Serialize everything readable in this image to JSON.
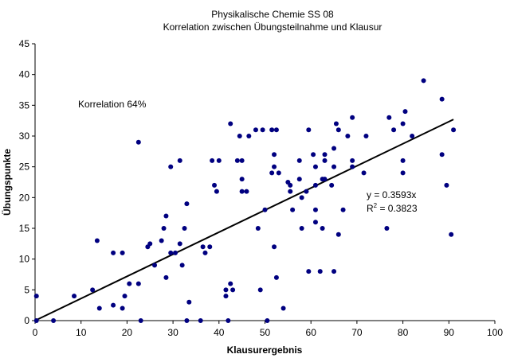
{
  "chart_data": {
    "type": "scatter",
    "title": "Physikalische Chemie SS 08",
    "subtitle": "Korrelation zwischen Übungsteilnahme und Klausur",
    "xlabel": "Klausurergebnis",
    "ylabel": "Übungspunkte",
    "xlim": [
      0,
      100
    ],
    "ylim": [
      0,
      45
    ],
    "xticks": [
      0,
      10,
      20,
      30,
      40,
      50,
      60,
      70,
      80,
      90,
      100
    ],
    "yticks": [
      0,
      5,
      10,
      15,
      20,
      25,
      30,
      35,
      40,
      45
    ],
    "grid": false,
    "legend": "none",
    "marker_color": "#000080",
    "line_color": "#000000",
    "annotations": {
      "correlation": "Korrelation 64%",
      "equation": "y = 0.3593x",
      "r2_prefix": "R",
      "r2_sup": "2",
      "r2_value": " = 0.3823"
    },
    "trendline": {
      "slope": 0.3593,
      "intercept": 0,
      "x_range": [
        0,
        91
      ]
    },
    "points": [
      [
        0.3,
        4
      ],
      [
        0.3,
        0
      ],
      [
        4,
        0
      ],
      [
        8.5,
        4
      ],
      [
        12.5,
        5
      ],
      [
        13.5,
        13
      ],
      [
        14,
        2
      ],
      [
        17,
        2.5
      ],
      [
        17,
        11
      ],
      [
        19,
        11
      ],
      [
        19,
        2
      ],
      [
        19.5,
        4
      ],
      [
        20.5,
        6
      ],
      [
        22.5,
        29
      ],
      [
        22.5,
        6
      ],
      [
        23,
        0
      ],
      [
        24.5,
        12
      ],
      [
        25,
        12.5
      ],
      [
        26,
        9
      ],
      [
        27.5,
        13
      ],
      [
        28,
        15
      ],
      [
        28.5,
        17
      ],
      [
        28.5,
        7
      ],
      [
        29.5,
        25
      ],
      [
        29.5,
        11
      ],
      [
        30.5,
        11
      ],
      [
        31.5,
        26
      ],
      [
        31.5,
        12.5
      ],
      [
        32,
        9
      ],
      [
        32.5,
        15
      ],
      [
        33,
        19
      ],
      [
        33,
        0
      ],
      [
        33.5,
        3
      ],
      [
        36,
        0
      ],
      [
        36.5,
        12
      ],
      [
        37,
        11
      ],
      [
        38,
        12
      ],
      [
        38.5,
        26
      ],
      [
        39,
        22
      ],
      [
        39.5,
        21
      ],
      [
        40,
        26
      ],
      [
        41.5,
        5
      ],
      [
        41.5,
        4
      ],
      [
        42,
        0
      ],
      [
        42.5,
        32
      ],
      [
        42.5,
        6
      ],
      [
        43,
        5
      ],
      [
        44,
        26
      ],
      [
        44.5,
        30
      ],
      [
        45,
        26
      ],
      [
        45,
        23
      ],
      [
        45,
        21
      ],
      [
        46,
        21
      ],
      [
        46.5,
        30
      ],
      [
        48,
        31
      ],
      [
        48.5,
        15
      ],
      [
        49,
        5
      ],
      [
        49.5,
        31
      ],
      [
        50,
        18
      ],
      [
        50.5,
        0
      ],
      [
        51.5,
        24
      ],
      [
        51.5,
        31
      ],
      [
        52,
        27
      ],
      [
        52,
        25
      ],
      [
        52,
        12
      ],
      [
        52.5,
        7
      ],
      [
        52.5,
        31
      ],
      [
        53,
        24
      ],
      [
        54,
        2
      ],
      [
        55,
        22.5
      ],
      [
        55.5,
        22
      ],
      [
        55.5,
        21
      ],
      [
        56,
        18
      ],
      [
        57.5,
        23
      ],
      [
        57.5,
        26
      ],
      [
        58,
        15
      ],
      [
        58,
        20
      ],
      [
        59,
        21
      ],
      [
        59.5,
        31
      ],
      [
        59.5,
        8
      ],
      [
        60.5,
        27
      ],
      [
        61,
        25
      ],
      [
        61,
        22
      ],
      [
        61,
        18
      ],
      [
        61,
        16
      ],
      [
        62,
        8
      ],
      [
        62.5,
        15
      ],
      [
        62.5,
        23
      ],
      [
        63,
        23
      ],
      [
        63,
        26
      ],
      [
        63,
        27
      ],
      [
        64.5,
        22
      ],
      [
        65,
        25
      ],
      [
        65,
        28
      ],
      [
        65,
        8
      ],
      [
        65.5,
        32
      ],
      [
        66,
        31
      ],
      [
        66,
        14
      ],
      [
        67,
        18
      ],
      [
        68,
        30
      ],
      [
        69,
        33
      ],
      [
        69,
        26
      ],
      [
        69,
        25
      ],
      [
        71.5,
        24
      ],
      [
        72,
        30
      ],
      [
        76.5,
        15
      ],
      [
        77,
        33
      ],
      [
        78,
        31
      ],
      [
        80,
        32
      ],
      [
        80,
        26
      ],
      [
        80,
        24
      ],
      [
        80.5,
        34
      ],
      [
        82,
        30
      ],
      [
        84.5,
        39
      ],
      [
        88.5,
        36
      ],
      [
        88.5,
        27
      ],
      [
        89.5,
        22
      ],
      [
        90.5,
        14
      ],
      [
        91,
        31
      ]
    ]
  }
}
